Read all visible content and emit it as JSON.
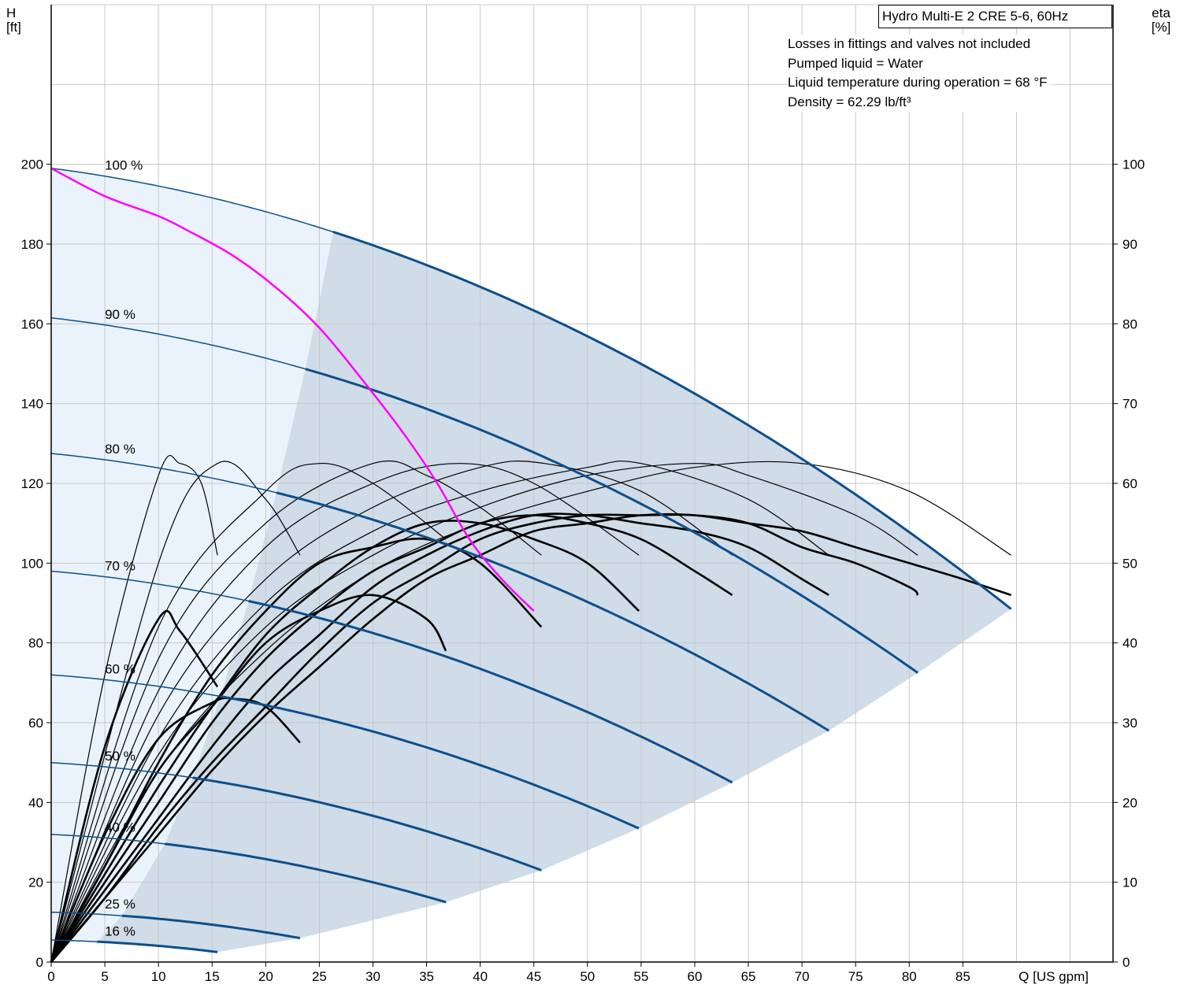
{
  "chart_data": {
    "type": "line",
    "title": "Hydro Multi-E 2 CRE 5-6, 60Hz",
    "notes": [
      "Losses in fittings and valves not included",
      "Pumped liquid = Water",
      "Liquid temperature during operation = 68 °F",
      "Density = 62.29 lb/ft³"
    ],
    "x_axis": {
      "label": "Q [US gpm]",
      "range": [
        0,
        99
      ],
      "ticks": [
        "0",
        "5",
        "10",
        "15",
        "20",
        "25",
        "30",
        "35",
        "40",
        "45",
        "50",
        "55",
        "60",
        "65",
        "70",
        "75",
        "80",
        "85"
      ]
    },
    "y_left": {
      "label_line1": "H",
      "label_line2": "[ft]",
      "range": [
        0,
        240
      ],
      "ticks": [
        "0",
        "20",
        "40",
        "60",
        "80",
        "100",
        "120",
        "140",
        "160",
        "180",
        "200"
      ]
    },
    "y_right": {
      "label_line1": "eta",
      "label_line2": "[%]",
      "range": [
        0,
        120
      ],
      "ticks": [
        "0",
        "10",
        "20",
        "30",
        "40",
        "50",
        "60",
        "70",
        "80",
        "90",
        "100"
      ]
    },
    "grid": true,
    "speed_curves": [
      {
        "name": "100 %",
        "shutoff_head": 199.0,
        "pref_start_q": 26.3,
        "end_q": 89.5,
        "end_head": 88.5
      },
      {
        "name": "90 %",
        "shutoff_head": 161.5,
        "pref_start_q": 23.7,
        "end_q": 80.8,
        "end_head": 72.5
      },
      {
        "name": "80 %",
        "shutoff_head": 127.5,
        "pref_start_q": 21.0,
        "end_q": 72.5,
        "end_head": 58.0
      },
      {
        "name": "70 %",
        "shutoff_head": 98.0,
        "pref_start_q": 18.4,
        "end_q": 63.5,
        "end_head": 45.0
      },
      {
        "name": "60 %",
        "shutoff_head": 72.0,
        "pref_start_q": 15.8,
        "end_q": 54.8,
        "end_head": 33.5
      },
      {
        "name": "50 %",
        "shutoff_head": 50.0,
        "pref_start_q": 13.2,
        "end_q": 45.7,
        "end_head": 23.0
      },
      {
        "name": "40 %",
        "shutoff_head": 32.0,
        "pref_start_q": 10.6,
        "end_q": 36.8,
        "end_head": 15.0
      },
      {
        "name": "25 %",
        "shutoff_head": 12.5,
        "pref_start_q": 6.6,
        "end_q": 23.2,
        "end_head": 6.0
      },
      {
        "name": "16 %",
        "shutoff_head": 5.5,
        "pref_start_q": 4.3,
        "end_q": 15.5,
        "end_head": 2.5
      }
    ],
    "system_curve": {
      "name": "",
      "color": "#ff00ff",
      "points": [
        [
          0,
          199
        ],
        [
          5,
          192
        ],
        [
          10,
          187
        ],
        [
          13,
          183
        ],
        [
          17,
          177
        ],
        [
          21,
          169
        ],
        [
          25,
          159
        ],
        [
          29,
          146
        ],
        [
          33,
          132
        ],
        [
          36,
          120
        ],
        [
          39,
          106
        ],
        [
          42,
          96
        ],
        [
          45,
          88
        ]
      ]
    },
    "efficiency_curves": [
      {
        "q": [
          0,
          5,
          10,
          12,
          15.5
        ],
        "eta": [
          0,
          27,
          43,
          41.5,
          34.5
        ]
      },
      {
        "q": [
          0,
          5,
          10,
          15,
          17,
          20,
          23.2
        ],
        "eta": [
          0,
          16,
          28,
          32.5,
          33,
          32,
          27.5
        ]
      },
      {
        "q": [
          0,
          5,
          10,
          15,
          20,
          25,
          30,
          35,
          36.8
        ],
        "eta": [
          0,
          12,
          24,
          32,
          40,
          44,
          46,
          43,
          39
        ]
      },
      {
        "q": [
          0,
          5,
          10,
          15,
          20,
          25,
          30,
          35,
          40,
          45.7
        ],
        "eta": [
          0,
          12,
          25,
          36,
          44,
          50,
          52,
          53,
          50,
          42
        ]
      },
      {
        "q": [
          0,
          5,
          10,
          15,
          20,
          25,
          30,
          35,
          40,
          45,
          50,
          54.8
        ],
        "eta": [
          0,
          11,
          22,
          32,
          41,
          47,
          52,
          55,
          55,
          53,
          50,
          44
        ]
      },
      {
        "q": [
          0,
          5,
          10,
          15,
          20,
          25,
          30,
          35,
          40,
          45,
          50,
          55,
          60,
          63.5
        ],
        "eta": [
          0,
          10,
          20,
          30,
          38,
          44,
          49,
          52,
          55,
          56,
          55,
          53,
          49,
          46
        ]
      },
      {
        "q": [
          0,
          5,
          10,
          15,
          20,
          25,
          30,
          35,
          40,
          45,
          50,
          55,
          60,
          65,
          70,
          72.5
        ],
        "eta": [
          0,
          9,
          18,
          27,
          35,
          41,
          47,
          51,
          54,
          56,
          56,
          55,
          54,
          52,
          48,
          46
        ]
      },
      {
        "q": [
          0,
          5,
          10,
          15,
          20,
          25,
          30,
          35,
          40,
          45,
          50,
          55,
          60,
          65,
          70,
          75,
          80,
          80.8
        ],
        "eta": [
          0,
          8,
          17,
          25,
          32,
          39,
          45,
          49,
          53,
          55,
          56,
          56,
          56,
          55,
          52,
          50,
          47,
          46
        ]
      },
      {
        "q": [
          0,
          5,
          10,
          15,
          20,
          25,
          30,
          35,
          40,
          45,
          50,
          55,
          60,
          65,
          70,
          75,
          80,
          85,
          89.5
        ],
        "eta": [
          0,
          8,
          16,
          24,
          31,
          37,
          43,
          48,
          51,
          54,
          55,
          56,
          56,
          55,
          54,
          52,
          50,
          48,
          46
        ]
      }
    ],
    "max_efficiency_envelope": [
      {
        "q": [
          0,
          5,
          10,
          12,
          14,
          15.5
        ],
        "eta": [
          0,
          36,
          61,
          62.5,
          60,
          51
        ]
      },
      {
        "q": [
          0,
          10,
          15.5,
          20,
          23.2
        ],
        "eta": [
          0,
          50,
          62.5,
          58,
          51
        ]
      },
      {
        "q": [
          0,
          10,
          20,
          25,
          30,
          36.8
        ],
        "eta": [
          0,
          42,
          59,
          62.5,
          60,
          53
        ]
      },
      {
        "q": [
          0,
          10,
          20,
          30,
          35,
          40,
          45.7
        ],
        "eta": [
          0,
          38,
          55,
          62.5,
          61,
          57,
          51
        ]
      },
      {
        "q": [
          0,
          10,
          20,
          30,
          38,
          45,
          54.8
        ],
        "eta": [
          0,
          34,
          52,
          60,
          62.5,
          60,
          51
        ]
      },
      {
        "q": [
          0,
          10,
          20,
          30,
          40,
          46,
          55,
          63.5
        ],
        "eta": [
          0,
          31,
          48,
          57,
          62,
          62.5,
          59,
          51
        ]
      },
      {
        "q": [
          0,
          10,
          20,
          30,
          40,
          50,
          55,
          65,
          72.5
        ],
        "eta": [
          0,
          28,
          45,
          54,
          59,
          62,
          62.5,
          58,
          51
        ]
      },
      {
        "q": [
          0,
          10,
          20,
          30,
          40,
          50,
          60,
          65,
          75,
          80.8
        ],
        "eta": [
          0,
          26,
          42,
          51,
          57,
          61,
          62.5,
          61,
          56,
          51
        ]
      },
      {
        "q": [
          0,
          10,
          20,
          30,
          40,
          50,
          60,
          70,
          80,
          89.5
        ],
        "eta": [
          0,
          24,
          39,
          49,
          55,
          59,
          62,
          62.5,
          59,
          51
        ]
      }
    ]
  }
}
